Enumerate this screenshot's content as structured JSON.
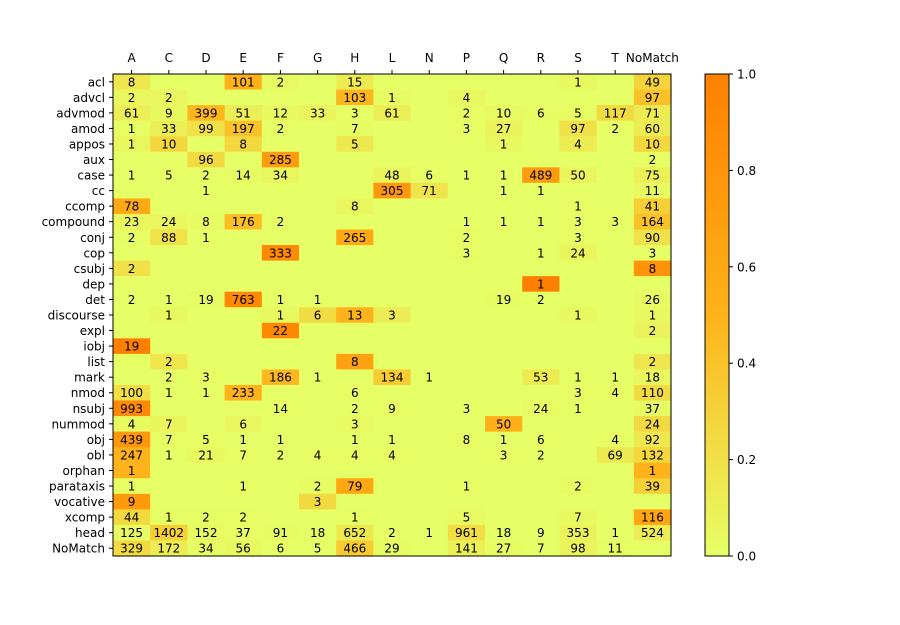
{
  "chart_data": {
    "type": "heatmap",
    "title": "",
    "xlabel": "",
    "ylabel": "",
    "x_categories": [
      "A",
      "C",
      "D",
      "E",
      "F",
      "G",
      "H",
      "L",
      "N",
      "P",
      "Q",
      "R",
      "S",
      "T",
      "NoMatch"
    ],
    "y_categories": [
      "acl",
      "advcl",
      "advmod",
      "amod",
      "appos",
      "aux",
      "case",
      "cc",
      "ccomp",
      "compound",
      "conj",
      "cop",
      "csubj",
      "dep",
      "det",
      "discourse",
      "expl",
      "iobj",
      "list",
      "mark",
      "nmod",
      "nsubj",
      "nummod",
      "obj",
      "obl",
      "orphan",
      "parataxis",
      "vocative",
      "xcomp",
      "head",
      "NoMatch"
    ],
    "values": [
      [
        8,
        null,
        null,
        101,
        2,
        null,
        15,
        null,
        null,
        null,
        null,
        null,
        1,
        null,
        49
      ],
      [
        2,
        2,
        null,
        null,
        null,
        null,
        103,
        1,
        null,
        4,
        null,
        null,
        null,
        null,
        97
      ],
      [
        61,
        9,
        399,
        51,
        12,
        33,
        3,
        61,
        null,
        2,
        10,
        6,
        5,
        117,
        71
      ],
      [
        1,
        33,
        99,
        197,
        2,
        null,
        7,
        null,
        null,
        3,
        27,
        null,
        97,
        2,
        60
      ],
      [
        1,
        10,
        null,
        8,
        null,
        null,
        5,
        null,
        null,
        null,
        1,
        null,
        4,
        null,
        10
      ],
      [
        null,
        null,
        96,
        null,
        285,
        null,
        null,
        null,
        null,
        null,
        null,
        null,
        null,
        null,
        2
      ],
      [
        1,
        5,
        2,
        14,
        34,
        null,
        null,
        48,
        6,
        1,
        1,
        489,
        50,
        null,
        75
      ],
      [
        null,
        null,
        1,
        null,
        null,
        null,
        null,
        305,
        71,
        null,
        1,
        1,
        null,
        null,
        11
      ],
      [
        78,
        null,
        null,
        null,
        null,
        null,
        8,
        null,
        null,
        null,
        null,
        null,
        1,
        null,
        41
      ],
      [
        23,
        24,
        8,
        176,
        2,
        null,
        null,
        null,
        null,
        1,
        1,
        1,
        3,
        3,
        164
      ],
      [
        2,
        88,
        1,
        null,
        null,
        null,
        265,
        null,
        null,
        2,
        null,
        null,
        3,
        null,
        90
      ],
      [
        null,
        null,
        null,
        null,
        333,
        null,
        null,
        null,
        null,
        3,
        null,
        1,
        24,
        null,
        3
      ],
      [
        2,
        null,
        null,
        null,
        null,
        null,
        null,
        null,
        null,
        null,
        null,
        null,
        null,
        null,
        8
      ],
      [
        null,
        null,
        null,
        null,
        null,
        null,
        null,
        null,
        null,
        null,
        null,
        1,
        null,
        null,
        null
      ],
      [
        2,
        1,
        19,
        763,
        1,
        1,
        null,
        null,
        null,
        null,
        19,
        2,
        null,
        null,
        26
      ],
      [
        null,
        1,
        null,
        null,
        1,
        6,
        13,
        3,
        null,
        null,
        null,
        null,
        1,
        null,
        1
      ],
      [
        null,
        null,
        null,
        null,
        22,
        null,
        null,
        null,
        null,
        null,
        null,
        null,
        null,
        null,
        2
      ],
      [
        19,
        null,
        null,
        null,
        null,
        null,
        null,
        null,
        null,
        null,
        null,
        null,
        null,
        null,
        null
      ],
      [
        null,
        2,
        null,
        null,
        null,
        null,
        8,
        null,
        null,
        null,
        null,
        null,
        null,
        null,
        2
      ],
      [
        null,
        2,
        3,
        null,
        186,
        1,
        null,
        134,
        1,
        null,
        null,
        53,
        1,
        1,
        18
      ],
      [
        100,
        1,
        1,
        233,
        null,
        null,
        6,
        null,
        null,
        null,
        null,
        null,
        3,
        4,
        110
      ],
      [
        993,
        null,
        null,
        null,
        14,
        null,
        2,
        9,
        null,
        3,
        null,
        24,
        1,
        null,
        37
      ],
      [
        4,
        7,
        null,
        6,
        null,
        null,
        3,
        null,
        null,
        null,
        50,
        null,
        null,
        null,
        24
      ],
      [
        439,
        7,
        5,
        1,
        1,
        null,
        1,
        1,
        null,
        8,
        1,
        6,
        null,
        4,
        92
      ],
      [
        247,
        1,
        21,
        7,
        2,
        4,
        4,
        4,
        null,
        null,
        3,
        2,
        null,
        69,
        132
      ],
      [
        1,
        null,
        null,
        null,
        null,
        null,
        null,
        null,
        null,
        null,
        null,
        null,
        null,
        null,
        1
      ],
      [
        1,
        null,
        null,
        1,
        null,
        2,
        79,
        null,
        null,
        1,
        null,
        null,
        2,
        null,
        39
      ],
      [
        9,
        null,
        null,
        null,
        null,
        3,
        null,
        null,
        null,
        null,
        null,
        null,
        null,
        null,
        null
      ],
      [
        44,
        1,
        2,
        2,
        null,
        null,
        1,
        null,
        null,
        5,
        null,
        null,
        7,
        null,
        116
      ],
      [
        125,
        1402,
        152,
        37,
        91,
        18,
        652,
        2,
        1,
        961,
        18,
        9,
        353,
        1,
        524
      ],
      [
        329,
        172,
        34,
        56,
        6,
        5,
        466,
        29,
        null,
        141,
        27,
        7,
        98,
        11,
        null
      ]
    ],
    "intensity": [
      [
        0.16,
        0,
        0,
        0.52,
        0.03,
        0,
        0.13,
        0,
        0,
        0,
        0,
        0,
        0.04,
        0,
        0.29
      ],
      [
        0.06,
        0.06,
        0,
        0,
        0,
        0,
        0.48,
        0.02,
        0,
        0.04,
        0,
        0,
        0,
        0,
        0.4
      ],
      [
        0.11,
        0.04,
        0.48,
        0.11,
        0.04,
        0.07,
        0.01,
        0.11,
        0,
        0.01,
        0.03,
        0.02,
        0.02,
        0.24,
        0.13
      ],
      [
        0.01,
        0.11,
        0.2,
        0.4,
        0.01,
        0,
        0.02,
        0,
        0,
        0.01,
        0.08,
        0,
        0.2,
        0.01,
        0.13
      ],
      [
        0.05,
        0.26,
        0,
        0.26,
        0,
        0,
        0.15,
        0,
        0,
        0,
        0.04,
        0,
        0.13,
        0,
        0.26
      ],
      [
        0,
        0,
        0.25,
        0,
        0.74,
        0,
        0,
        0,
        0,
        0,
        0,
        0,
        0,
        0,
        0.01
      ],
      [
        0,
        0.01,
        0,
        0.02,
        0.05,
        0,
        0,
        0.07,
        0.01,
        0,
        0,
        0.74,
        0.07,
        0,
        0.1
      ],
      [
        0,
        0,
        0,
        0,
        0,
        0,
        0,
        0.77,
        0.18,
        0,
        0,
        0,
        0,
        0,
        0.03
      ],
      [
        0.6,
        0,
        0,
        0,
        0,
        0,
        0.06,
        0,
        0,
        0,
        0,
        0,
        0.01,
        0,
        0.32
      ],
      [
        0.06,
        0.06,
        0.02,
        0.43,
        0.01,
        0,
        0,
        0,
        0,
        0,
        0,
        0,
        0.01,
        0.01,
        0.4
      ],
      [
        0.01,
        0.19,
        0,
        0,
        0,
        0,
        0.59,
        0,
        0,
        0.01,
        0,
        0,
        0.01,
        0,
        0.2
      ],
      [
        0,
        0,
        0,
        0,
        0.91,
        0,
        0,
        0,
        0,
        0.01,
        0,
        0,
        0.07,
        0,
        0.01
      ],
      [
        0.2,
        0,
        0,
        0,
        0,
        0,
        0,
        0,
        0,
        0,
        0,
        0,
        0,
        0,
        0.8
      ],
      [
        0,
        0,
        0,
        0,
        0,
        0,
        0,
        0,
        0,
        0,
        0,
        1.0,
        0,
        0,
        0
      ],
      [
        0,
        0,
        0.02,
        0.92,
        0,
        0,
        0,
        0,
        0,
        0,
        0.02,
        0,
        0,
        0,
        0.03
      ],
      [
        0,
        0.04,
        0,
        0,
        0.04,
        0.23,
        0.5,
        0.12,
        0,
        0,
        0,
        0,
        0.04,
        0,
        0.04
      ],
      [
        0,
        0,
        0,
        0,
        0.92,
        0,
        0,
        0,
        0,
        0,
        0,
        0,
        0,
        0,
        0.08
      ],
      [
        1.0,
        0,
        0,
        0,
        0,
        0,
        0,
        0,
        0,
        0,
        0,
        0,
        0,
        0,
        0
      ],
      [
        0,
        0.17,
        0,
        0,
        0,
        0,
        0.67,
        0,
        0,
        0,
        0,
        0,
        0,
        0,
        0.17
      ],
      [
        0,
        0,
        0.01,
        0,
        0.47,
        0,
        0,
        0.34,
        0,
        0,
        0,
        0.13,
        0,
        0,
        0.05
      ],
      [
        0.22,
        0,
        0,
        0.51,
        0,
        0,
        0.01,
        0,
        0,
        0,
        0,
        0,
        0.01,
        0.01,
        0.24
      ],
      [
        0.91,
        0,
        0,
        0,
        0.01,
        0,
        0,
        0.01,
        0,
        0,
        0,
        0.02,
        0,
        0,
        0.03
      ],
      [
        0.04,
        0.07,
        0,
        0.06,
        0,
        0,
        0.03,
        0,
        0,
        0,
        0.53,
        0,
        0,
        0,
        0.25
      ],
      [
        0.77,
        0.01,
        0.01,
        0,
        0,
        0,
        0,
        0,
        0,
        0.01,
        0,
        0.01,
        0,
        0.01,
        0.16
      ],
      [
        0.5,
        0,
        0.04,
        0.01,
        0,
        0.01,
        0.01,
        0.01,
        0,
        0,
        0.01,
        0,
        0,
        0.14,
        0.27
      ],
      [
        0.5,
        0,
        0,
        0,
        0,
        0,
        0,
        0,
        0,
        0,
        0,
        0,
        0,
        0,
        0.5
      ],
      [
        0.01,
        0,
        0,
        0.01,
        0,
        0.02,
        0.63,
        0,
        0,
        0.01,
        0,
        0,
        0.02,
        0,
        0.31
      ],
      [
        0.75,
        0,
        0,
        0,
        0,
        0.25,
        0,
        0,
        0,
        0,
        0,
        0,
        0,
        0,
        0
      ],
      [
        0.25,
        0.01,
        0.01,
        0.01,
        0,
        0,
        0.01,
        0,
        0,
        0.03,
        0,
        0,
        0.04,
        0,
        0.65
      ],
      [
        0.03,
        0.32,
        0.03,
        0.01,
        0.02,
        0,
        0.15,
        0,
        0,
        0.22,
        0,
        0,
        0.08,
        0,
        0.12
      ],
      [
        0.24,
        0.12,
        0.02,
        0.04,
        0,
        0,
        0.34,
        0.02,
        0,
        0.1,
        0.02,
        0,
        0.07,
        0.01,
        0
      ]
    ],
    "colorbar": {
      "range": [
        0,
        1
      ],
      "ticks": [
        "0.0",
        "0.2",
        "0.4",
        "0.6",
        "0.8",
        "1.0"
      ],
      "colors": [
        "#e6ff66",
        "#ffb31a",
        "#ff8000"
      ]
    },
    "grid": false
  }
}
